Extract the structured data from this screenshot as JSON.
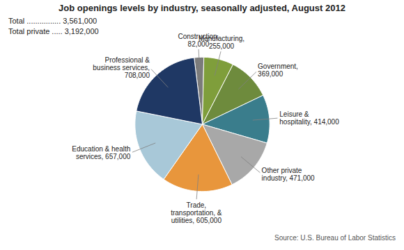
{
  "chart_data": {
    "type": "pie",
    "title": "Job openings levels by industry, seasonally adjusted, August 2012",
    "categories": [
      "Construction,\n82,000",
      "Manufacturing,\n255,000",
      "Government,\n369,000",
      "Leisure &\nhospitality, 414,000",
      "Other private\nindustry, 471,000",
      "Trade,\ntransportation, &\nutilities, 605,000",
      "Education & health\nservices, 657,000",
      "Professional &\nbusiness services,\n708,000"
    ],
    "values": [
      82000,
      255000,
      369000,
      414000,
      471000,
      605000,
      657000,
      708000
    ],
    "colors": [
      "#7B7B7B",
      "#7F9E3B",
      "#6E8B3D",
      "#3A7D8C",
      "#A8A8A8",
      "#E8963C",
      "#A8C8D8",
      "#1F3864"
    ],
    "annotations": [
      "Total ................ 3,561,000",
      "Total private ..... 3,192,000"
    ],
    "source": "Source: U.S. Bureau of Labor Statistics"
  }
}
